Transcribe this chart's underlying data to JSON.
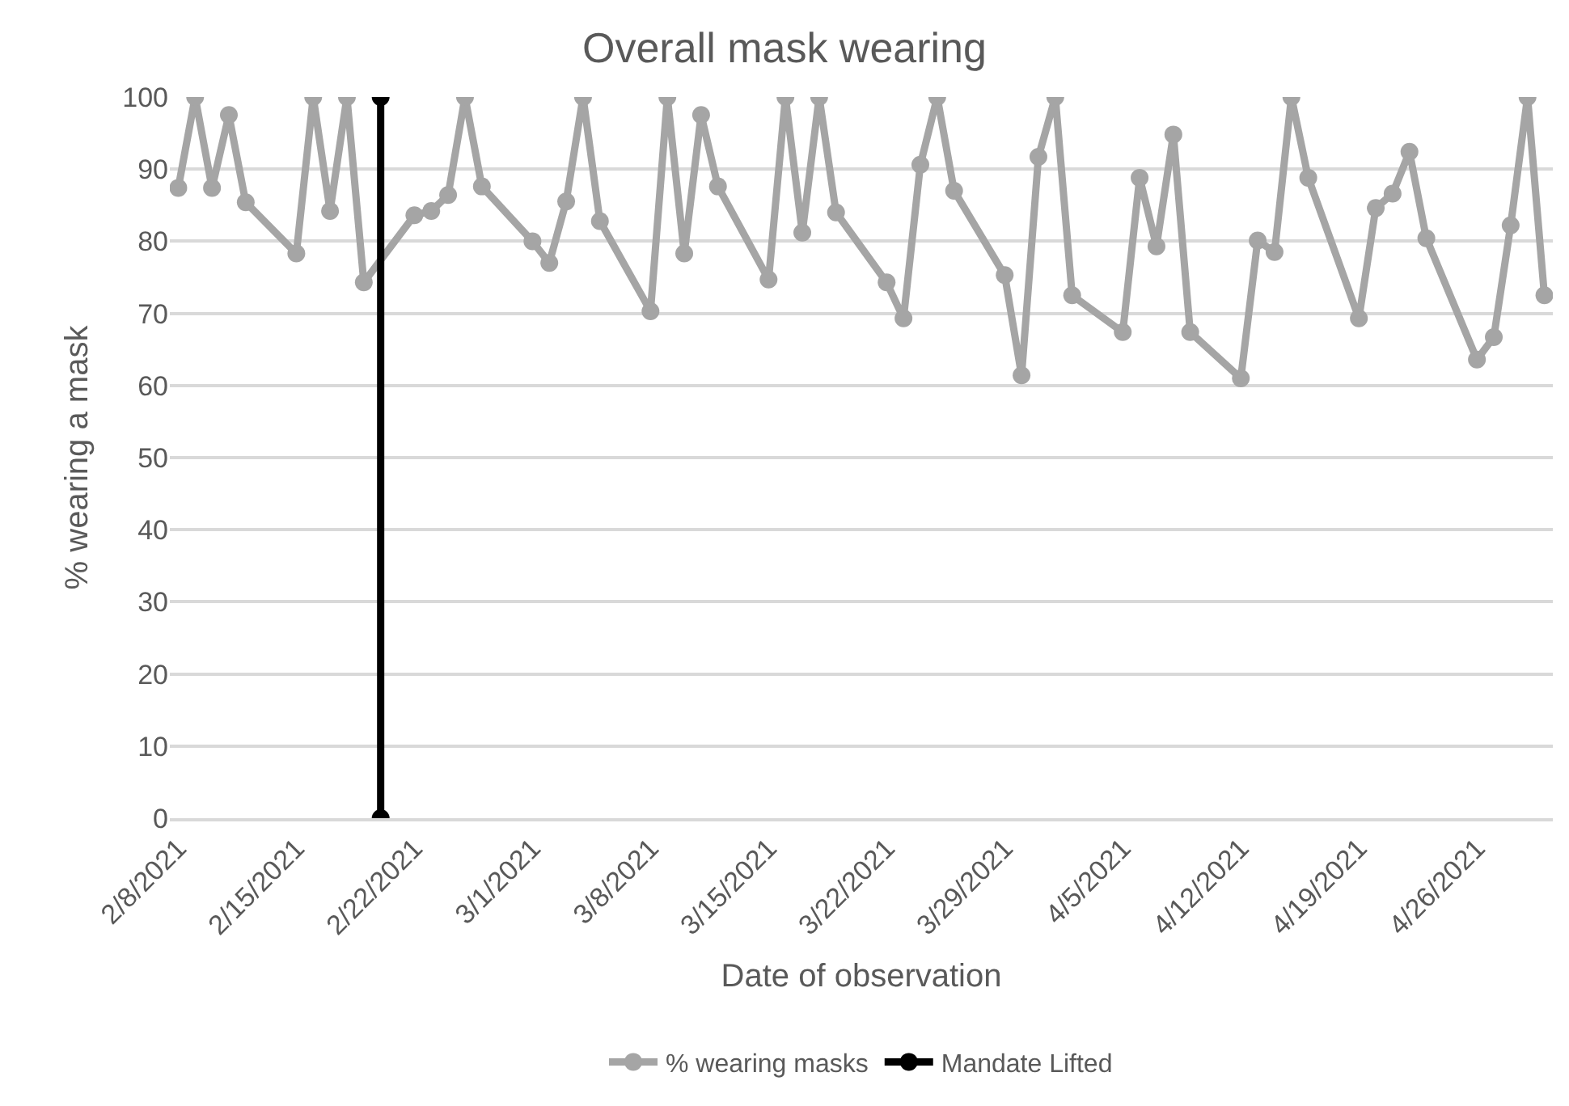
{
  "chart_data": {
    "type": "line",
    "title": "Overall mask wearing",
    "xlabel": "Date of observation",
    "ylabel": "% wearing a mask",
    "xlim": [
      "2021-02-07T12:00",
      "2021-04-30T12:00"
    ],
    "xticks": [
      {
        "value": "2021-02-08",
        "label": "2/8/2021"
      },
      {
        "value": "2021-02-15",
        "label": "2/15/2021"
      },
      {
        "value": "2021-02-22",
        "label": "2/22/2021"
      },
      {
        "value": "2021-03-01",
        "label": "3/1/2021"
      },
      {
        "value": "2021-03-08",
        "label": "3/8/2021"
      },
      {
        "value": "2021-03-15",
        "label": "3/15/2021"
      },
      {
        "value": "2021-03-22",
        "label": "3/22/2021"
      },
      {
        "value": "2021-03-29",
        "label": "3/29/2021"
      },
      {
        "value": "2021-04-05",
        "label": "4/5/2021"
      },
      {
        "value": "2021-04-12",
        "label": "4/12/2021"
      },
      {
        "value": "2021-04-19",
        "label": "4/19/2021"
      },
      {
        "value": "2021-04-26",
        "label": "4/26/2021"
      }
    ],
    "ylim": [
      0,
      100
    ],
    "yticks": [
      0,
      10,
      20,
      30,
      40,
      50,
      60,
      70,
      80,
      90,
      100
    ],
    "grid": "y",
    "legend": "bottom",
    "marker": "circle",
    "line_style": "solid",
    "series": [
      {
        "name": "% wearing masks",
        "color": "#a5a5a5",
        "x": [
          "2021-02-08",
          "2021-02-09",
          "2021-02-10",
          "2021-02-11",
          "2021-02-12",
          "2021-02-15",
          "2021-02-16",
          "2021-02-17",
          "2021-02-18",
          "2021-02-19",
          "2021-02-22",
          "2021-02-23",
          "2021-02-24",
          "2021-02-25",
          "2021-02-26",
          "2021-03-01",
          "2021-03-02",
          "2021-03-03",
          "2021-03-04",
          "2021-03-05",
          "2021-03-08",
          "2021-03-09",
          "2021-03-10",
          "2021-03-11",
          "2021-03-12",
          "2021-03-15",
          "2021-03-16",
          "2021-03-17",
          "2021-03-18",
          "2021-03-19",
          "2021-03-22",
          "2021-03-23",
          "2021-03-24",
          "2021-03-25",
          "2021-03-26",
          "2021-03-29",
          "2021-03-30",
          "2021-03-31",
          "2021-04-01",
          "2021-04-02",
          "2021-04-05",
          "2021-04-06",
          "2021-04-07",
          "2021-04-08",
          "2021-04-09",
          "2021-04-12",
          "2021-04-13",
          "2021-04-14",
          "2021-04-15",
          "2021-04-16",
          "2021-04-19",
          "2021-04-20",
          "2021-04-21",
          "2021-04-22",
          "2021-04-23",
          "2021-04-26",
          "2021-04-27",
          "2021-04-28",
          "2021-04-29",
          "2021-04-30"
        ],
        "values": [
          87.4,
          100,
          87.4,
          97.5,
          85.4,
          78.3,
          100,
          84.2,
          100,
          74.3,
          83.6,
          84.2,
          86.4,
          100,
          87.6,
          80,
          77,
          85.5,
          100,
          82.8,
          70.3,
          100,
          78.3,
          97.5,
          87.6,
          74.7,
          100,
          81.2,
          100,
          84,
          74.3,
          69.3,
          90.6,
          100,
          87,
          75.3,
          61.4,
          91.7,
          100,
          72.5,
          67.4,
          88.8,
          79.3,
          94.8,
          67.4,
          61,
          80.1,
          78.5,
          100,
          88.8,
          69.3,
          84.6,
          86.6,
          92.4,
          80.4,
          63.6,
          66.7,
          82.2,
          100,
          72.5
        ]
      },
      {
        "name": "Mandate Lifted",
        "color": "#000000",
        "x": [
          "2021-02-20",
          "2021-02-20"
        ],
        "values": [
          0,
          100
        ]
      }
    ]
  }
}
